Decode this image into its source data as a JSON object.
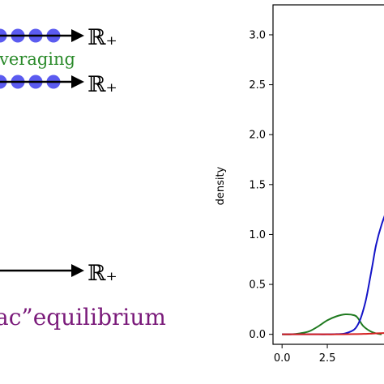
{
  "diagram": {
    "top_arrow_label": "ℝ₊",
    "middle_arrow_label": "ℝ₊",
    "bottom_arrow_label": "ℝ₊",
    "averaging_text": "veraging",
    "averaging_color": "#2a8a2a",
    "equilibrium_text": "ac”equilibrium",
    "equilibrium_color": "#7a1a7a",
    "dot_color": "#5b5bf0",
    "top_dots": 4,
    "middle_dots": 4
  },
  "chart_data": {
    "type": "line",
    "title": "",
    "xlabel": "",
    "ylabel": "density",
    "xlim": [
      -0.5,
      5.9
    ],
    "ylim": [
      -0.1,
      3.3
    ],
    "x_ticks": [
      "0.0",
      "2.5"
    ],
    "x_tick_values": [
      0.0,
      2.5
    ],
    "y_ticks": [
      "0.0",
      "0.5",
      "1.0",
      "1.5",
      "2.0",
      "2.5",
      "3.0"
    ],
    "y_tick_values": [
      0.0,
      0.5,
      1.0,
      1.5,
      2.0,
      2.5,
      3.0
    ],
    "grid": false,
    "series": [
      {
        "color": "#1f7a1f",
        "x": [
          0.0,
          0.5,
          1.0,
          1.5,
          2.0,
          2.5,
          3.0,
          3.5,
          4.0,
          4.2,
          4.5,
          5.0,
          5.5
        ],
        "y": [
          0.0,
          0.0,
          0.01,
          0.03,
          0.08,
          0.14,
          0.18,
          0.2,
          0.19,
          0.16,
          0.08,
          0.02,
          0.0
        ]
      },
      {
        "color": "#1414c8",
        "x": [
          0.0,
          1.0,
          2.0,
          2.5,
          3.0,
          3.5,
          4.0,
          4.3,
          4.6,
          4.8,
          5.0,
          5.2,
          5.5,
          5.9
        ],
        "y": [
          0.0,
          0.0,
          0.0,
          0.0,
          0.002,
          0.01,
          0.05,
          0.14,
          0.32,
          0.5,
          0.7,
          0.9,
          1.1,
          1.3
        ]
      },
      {
        "color": "#d42020",
        "x": [
          0.0,
          1.0,
          2.0,
          3.0,
          4.0,
          4.5,
          5.0,
          5.5,
          5.9
        ],
        "y": [
          0.0,
          0.0,
          0.0,
          0.0,
          0.002,
          0.004,
          0.008,
          0.012,
          0.015
        ]
      }
    ]
  }
}
